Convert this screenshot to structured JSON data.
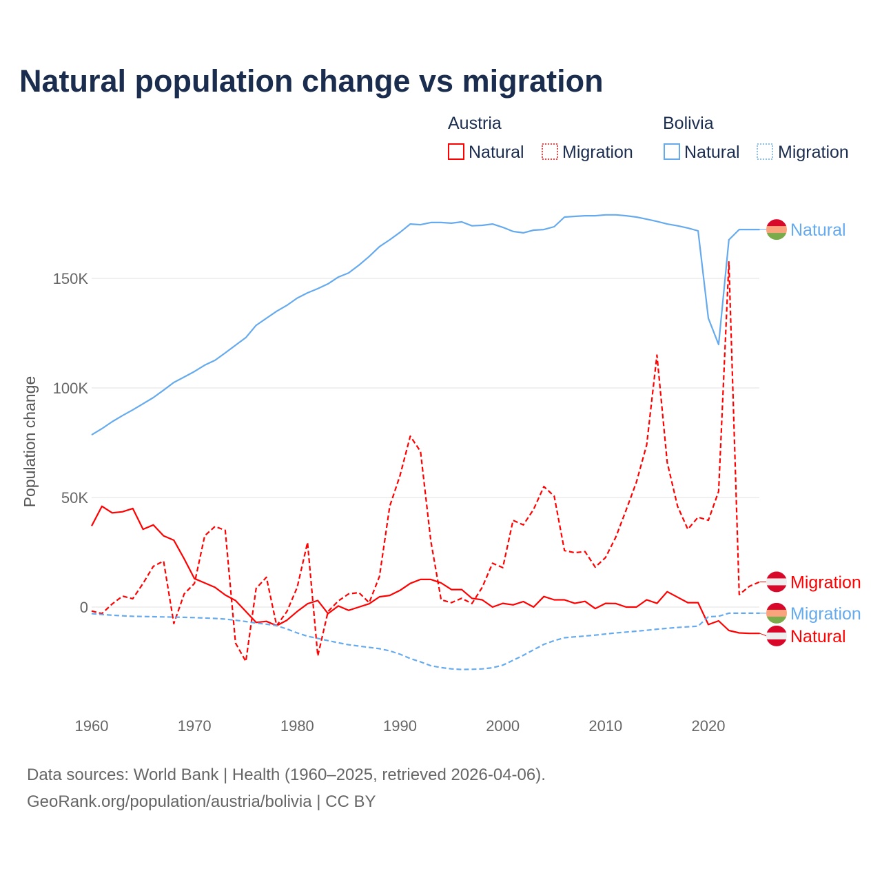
{
  "chart_data": {
    "type": "line",
    "title": "Natural population change vs migration",
    "xlabel": "",
    "ylabel": "Population change",
    "xlim": [
      1960,
      2025
    ],
    "ylim": [
      -35000,
      185000
    ],
    "x_ticks": [
      1960,
      1970,
      1980,
      1990,
      2000,
      2010,
      2020
    ],
    "x_tick_labels": [
      "1960",
      "1970",
      "1980",
      "1990",
      "2000",
      "2010",
      "2020"
    ],
    "y_ticks": [
      0,
      50000,
      100000,
      150000
    ],
    "y_tick_labels": [
      "0",
      "50K",
      "100K",
      "150K"
    ],
    "grid": true,
    "legend_placement": "top-right",
    "legend_groups": [
      {
        "name": "Austria",
        "items": [
          "Natural",
          "Migration"
        ]
      },
      {
        "name": "Bolivia",
        "items": [
          "Natural",
          "Migration"
        ]
      }
    ],
    "x_start": 1960,
    "series": [
      {
        "country": "Austria",
        "name": "Natural",
        "end_label": "Natural",
        "color": "#ff0000",
        "style": "solid",
        "values": [
          37000,
          46000,
          43000,
          43500,
          45000,
          35500,
          37500,
          32500,
          30500,
          22000,
          13000,
          11000,
          9000,
          5500,
          3000,
          -2000,
          -7000,
          -6500,
          -8500,
          -6000,
          -2000,
          1500,
          3000,
          -3000,
          500,
          -1500,
          0,
          1500,
          4700,
          5300,
          7600,
          10800,
          12600,
          12600,
          11000,
          8000,
          8000,
          4000,
          3300,
          0,
          1700,
          1000,
          2500,
          0,
          4800,
          3300,
          3300,
          1700,
          2600,
          -700,
          1700,
          1600,
          0,
          0,
          3300,
          1700,
          7000,
          4500,
          2000,
          2000,
          -8000,
          -6300,
          -10700,
          -11800,
          -12000,
          -12000
        ]
      },
      {
        "country": "Austria",
        "name": "Migration",
        "end_label": "Migration",
        "color": "#ff0000",
        "style": "dashed",
        "values": [
          -1800,
          -3000,
          1400,
          5000,
          3800,
          10800,
          18600,
          21000,
          -7500,
          6000,
          10800,
          32500,
          36800,
          35000,
          -16400,
          -24800,
          8500,
          13600,
          -8500,
          -2000,
          9000,
          29500,
          -22300,
          -2000,
          2800,
          6000,
          6600,
          2000,
          14000,
          46000,
          60000,
          78000,
          71000,
          30000,
          3300,
          2000,
          4000,
          1600,
          9000,
          20000,
          18000,
          39600,
          37500,
          44600,
          55000,
          50600,
          25800,
          24800,
          25300,
          18200,
          22600,
          32000,
          44300,
          57000,
          74000,
          115000,
          66000,
          46000,
          35500,
          41000,
          39600,
          52800,
          157500,
          5700,
          9500,
          11500
        ]
      },
      {
        "country": "Bolivia",
        "name": "Natural",
        "end_label": "Natural",
        "color": "#66aaee",
        "style": "solid",
        "values": [
          78600,
          81400,
          84600,
          87400,
          90000,
          92800,
          95600,
          99000,
          102500,
          105000,
          107500,
          110400,
          112600,
          116000,
          119500,
          123000,
          128600,
          131800,
          135000,
          137700,
          141000,
          143400,
          145300,
          147500,
          150600,
          152500,
          156000,
          160000,
          164500,
          167600,
          171000,
          174800,
          174500,
          175500,
          175500,
          175200,
          175800,
          174000,
          174200,
          174800,
          173300,
          171400,
          170800,
          172000,
          172300,
          173600,
          178000,
          178300,
          178600,
          178600,
          179000,
          179000,
          178600,
          178000,
          177000,
          176000,
          174800,
          174000,
          173000,
          171700,
          131800,
          119800,
          167600,
          172300,
          172300,
          172300
        ]
      },
      {
        "country": "Bolivia",
        "name": "Migration",
        "end_label": "Migration",
        "color": "#66aaee",
        "style": "dashed",
        "values": [
          -3000,
          -3400,
          -3700,
          -4000,
          -4200,
          -4300,
          -4400,
          -4500,
          -4600,
          -4700,
          -4800,
          -5000,
          -5200,
          -5500,
          -6000,
          -6600,
          -7300,
          -7800,
          -8500,
          -10000,
          -11800,
          -13300,
          -14300,
          -15300,
          -16300,
          -17200,
          -17800,
          -18400,
          -19000,
          -20000,
          -21500,
          -23500,
          -25000,
          -26800,
          -27600,
          -28200,
          -28500,
          -28400,
          -28200,
          -27700,
          -26500,
          -24300,
          -22000,
          -19500,
          -17000,
          -15300,
          -14000,
          -13600,
          -13200,
          -12800,
          -12300,
          -11800,
          -11400,
          -11000,
          -10600,
          -10100,
          -9700,
          -9300,
          -9000,
          -8700,
          -4400,
          -4200,
          -2800,
          -2800,
          -2800,
          -2800
        ]
      }
    ]
  },
  "flags": {
    "Austria": [
      "#d8082a",
      "#eeeeee",
      "#d8082a"
    ],
    "Bolivia": [
      "#d8082a",
      "#f9a47c",
      "#7aab4a"
    ]
  },
  "footer": {
    "line1": "Data sources: World Bank | Health (1960–2025, retrieved 2026-04-06).",
    "line2": "GeoRank.org/population/austria/bolivia | CC BY"
  }
}
